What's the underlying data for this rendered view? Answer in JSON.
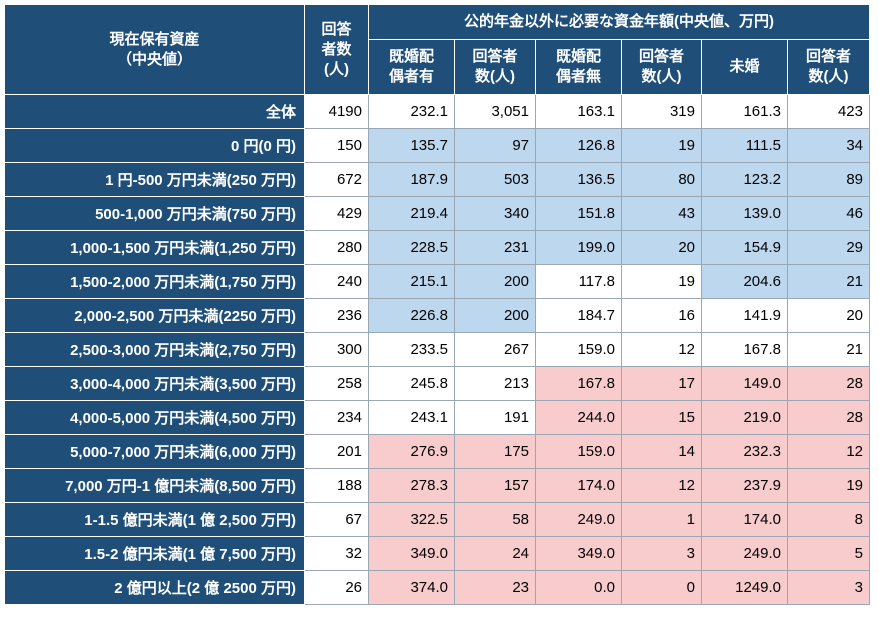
{
  "header": {
    "asset_label": "現在保有資産\n（中央値）",
    "resp_label": "回答\n者数\n(人)",
    "group_title": "公的年金以外に必要な資金年額(中央値、万円)",
    "sub": [
      "既婚配\n偶者有",
      "回答者\n数(人)",
      "既婚配\n偶者無",
      "回答者\n数(人)",
      "未婚",
      "回答者\n数(人)"
    ]
  },
  "colors": {
    "header_bg": "#1f4e78",
    "blue": "#bdd7ee",
    "pink": "#f8cbcc"
  },
  "rows": [
    {
      "label": "全体",
      "n": "4190",
      "c": [
        "232.1",
        "3,051",
        "163.1",
        "319",
        "161.3",
        "423"
      ],
      "hl": [
        "",
        "",
        "",
        "",
        "",
        ""
      ]
    },
    {
      "label": "0 円(0 円)",
      "n": "150",
      "c": [
        "135.7",
        "97",
        "126.8",
        "19",
        "111.5",
        "34"
      ],
      "hl": [
        "blue",
        "blue",
        "blue",
        "blue",
        "blue",
        "blue"
      ]
    },
    {
      "label": "1 円-500 万円未満(250 万円)",
      "n": "672",
      "c": [
        "187.9",
        "503",
        "136.5",
        "80",
        "123.2",
        "89"
      ],
      "hl": [
        "blue",
        "blue",
        "blue",
        "blue",
        "blue",
        "blue"
      ]
    },
    {
      "label": "500-1,000 万円未満(750 万円)",
      "n": "429",
      "c": [
        "219.4",
        "340",
        "151.8",
        "43",
        "139.0",
        "46"
      ],
      "hl": [
        "blue",
        "blue",
        "blue",
        "blue",
        "blue",
        "blue"
      ]
    },
    {
      "label": "1,000-1,500 万円未満(1,250 万円)",
      "n": "280",
      "c": [
        "228.5",
        "231",
        "199.0",
        "20",
        "154.9",
        "29"
      ],
      "hl": [
        "blue",
        "blue",
        "blue",
        "blue",
        "blue",
        "blue"
      ]
    },
    {
      "label": "1,500-2,000 万円未満(1,750 万円)",
      "n": "240",
      "c": [
        "215.1",
        "200",
        "117.8",
        "19",
        "204.6",
        "21"
      ],
      "hl": [
        "blue",
        "blue",
        "",
        "",
        "blue",
        "blue"
      ]
    },
    {
      "label": "2,000-2,500 万円未満(2250 万円)",
      "n": "236",
      "c": [
        "226.8",
        "200",
        "184.7",
        "16",
        "141.9",
        "20"
      ],
      "hl": [
        "blue",
        "blue",
        "",
        "",
        "",
        ""
      ]
    },
    {
      "label": "2,500-3,000 万円未満(2,750 万円)",
      "n": "300",
      "c": [
        "233.5",
        "267",
        "159.0",
        "12",
        "167.8",
        "21"
      ],
      "hl": [
        "",
        "",
        "",
        "",
        "",
        ""
      ]
    },
    {
      "label": "3,000-4,000 万円未満(3,500 万円)",
      "n": "258",
      "c": [
        "245.8",
        "213",
        "167.8",
        "17",
        "149.0",
        "28"
      ],
      "hl": [
        "",
        "",
        "pink",
        "pink",
        "pink",
        "pink"
      ]
    },
    {
      "label": "4,000-5,000 万円未満(4,500 万円)",
      "n": "234",
      "c": [
        "243.1",
        "191",
        "244.0",
        "15",
        "219.0",
        "28"
      ],
      "hl": [
        "",
        "",
        "pink",
        "pink",
        "pink",
        "pink"
      ]
    },
    {
      "label": "5,000-7,000 万円未満(6,000 万円)",
      "n": "201",
      "c": [
        "276.9",
        "175",
        "159.0",
        "14",
        "232.3",
        "12"
      ],
      "hl": [
        "pink",
        "pink",
        "pink",
        "pink",
        "pink",
        "pink"
      ]
    },
    {
      "label": "7,000 万円-1 億円未満(8,500 万円)",
      "n": "188",
      "c": [
        "278.3",
        "157",
        "174.0",
        "12",
        "237.9",
        "19"
      ],
      "hl": [
        "pink",
        "pink",
        "pink",
        "pink",
        "pink",
        "pink"
      ]
    },
    {
      "label": "1-1.5 億円未満(1 億 2,500 万円)",
      "n": "67",
      "c": [
        "322.5",
        "58",
        "249.0",
        "1",
        "174.0",
        "8"
      ],
      "hl": [
        "pink",
        "pink",
        "pink",
        "pink",
        "pink",
        "pink"
      ]
    },
    {
      "label": "1.5-2 億円未満(1 億 7,500 万円)",
      "n": "32",
      "c": [
        "349.0",
        "24",
        "349.0",
        "3",
        "249.0",
        "5"
      ],
      "hl": [
        "pink",
        "pink",
        "pink",
        "pink",
        "pink",
        "pink"
      ]
    },
    {
      "label": "2 億円以上(2 億 2500 万円)",
      "n": "26",
      "c": [
        "374.0",
        "23",
        "0.0",
        "0",
        "1249.0",
        "3"
      ],
      "hl": [
        "pink",
        "pink",
        "pink",
        "pink",
        "pink",
        "pink"
      ]
    }
  ]
}
